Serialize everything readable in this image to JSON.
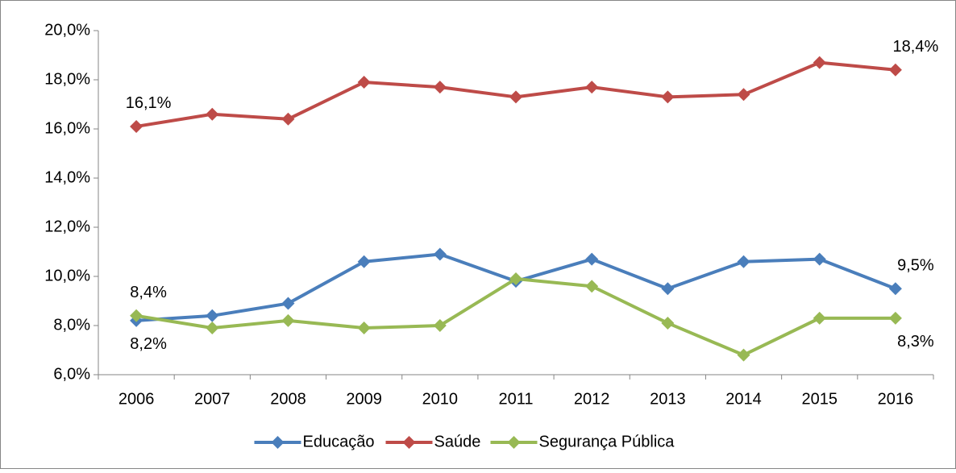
{
  "chart_data": {
    "type": "line",
    "categories": [
      "2006",
      "2007",
      "2008",
      "2009",
      "2010",
      "2011",
      "2012",
      "2013",
      "2014",
      "2015",
      "2016"
    ],
    "series": [
      {
        "name": "Educação",
        "color": "#4a7ebb",
        "values": [
          8.2,
          8.4,
          8.9,
          10.6,
          10.9,
          9.8,
          10.7,
          9.5,
          10.6,
          10.7,
          9.5
        ],
        "value_labels": [
          "8,2%",
          null,
          null,
          null,
          null,
          null,
          null,
          null,
          null,
          null,
          "9,5%"
        ]
      },
      {
        "name": "Saúde",
        "color": "#be4b48",
        "values": [
          16.1,
          16.6,
          16.4,
          17.9,
          17.7,
          17.3,
          17.7,
          17.3,
          17.4,
          18.7,
          18.4
        ],
        "value_labels": [
          "16,1%",
          null,
          null,
          null,
          null,
          null,
          null,
          null,
          null,
          null,
          "18,4%"
        ]
      },
      {
        "name": "Segurança Pública",
        "color": "#98b954",
        "values": [
          8.4,
          7.9,
          8.2,
          7.9,
          8.0,
          9.9,
          9.6,
          8.1,
          6.8,
          8.3,
          8.3
        ],
        "value_labels": [
          "8,4%",
          null,
          null,
          null,
          null,
          null,
          null,
          null,
          null,
          null,
          "8,3%"
        ]
      }
    ],
    "ylim": [
      6,
      20
    ],
    "yticks": [
      {
        "value": 6,
        "label": "6,0%"
      },
      {
        "value": 8,
        "label": "8,0%"
      },
      {
        "value": 10,
        "label": "10,0%"
      },
      {
        "value": 12,
        "label": "12,0%"
      },
      {
        "value": 14,
        "label": "14,0%"
      },
      {
        "value": 16,
        "label": "16,0%"
      },
      {
        "value": 18,
        "label": "18,0%"
      },
      {
        "value": 20,
        "label": "20,0%"
      }
    ],
    "grid": false,
    "legend": "bottom"
  }
}
